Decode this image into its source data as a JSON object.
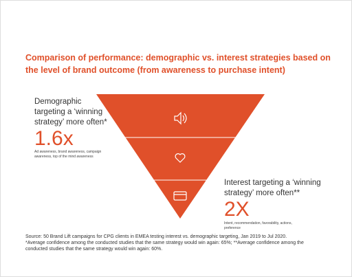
{
  "title": {
    "lines": [
      "Comparison of performance: demographic vs. interest strategies based on",
      "the level of brand outcome (from awareness to purchase intent)"
    ]
  },
  "demographic": {
    "lines": [
      "Demographic",
      "targeting a ‘winning",
      "strategy’ more often*"
    ],
    "figure": "1.6x",
    "detail": [
      "Ad awareness, brand awareness, campaign",
      "awareness, top of the mind awareness"
    ]
  },
  "interest": {
    "lines": [
      "Interest targeting a ‘winning",
      "strategy’ more often**"
    ],
    "figure": "2X",
    "detail": [
      "Intent, recommendation, favorability, actions,",
      "preference"
    ]
  },
  "source": {
    "lines": [
      "Source: 50 Brand Lift campaigns for CPG clients in EMEA testing interest vs. demographic targeting, Jan 2019 to Jul 2020.",
      "*Average confidence among the conducted studies that the same strategy would win again: 65%; **Average confidence among the",
      "conducted studies that the same strategy would win again: 60%."
    ]
  }
}
